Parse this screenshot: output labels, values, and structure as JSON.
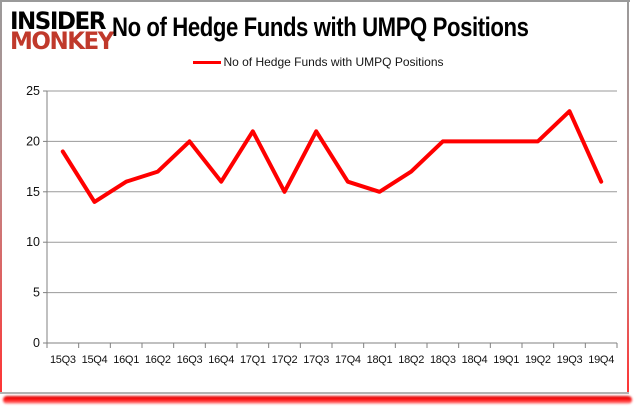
{
  "logo": {
    "line1": "INSIDER",
    "line2": "MONKEY",
    "line1_color": "#000000",
    "line2_color": "#c0392b"
  },
  "header": {
    "title": "No of Hedge Funds with UMPQ Positions"
  },
  "legend": {
    "label": "No of Hedge Funds with UMPQ Positions",
    "color": "#ff0000"
  },
  "chart_data": {
    "type": "line",
    "title": "No of Hedge Funds with UMPQ Positions",
    "categories": [
      "15Q3",
      "15Q4",
      "16Q1",
      "16Q2",
      "16Q3",
      "16Q4",
      "17Q1",
      "17Q2",
      "17Q3",
      "17Q4",
      "18Q1",
      "18Q2",
      "18Q3",
      "18Q4",
      "19Q1",
      "19Q2",
      "19Q3",
      "19Q4"
    ],
    "series": [
      {
        "name": "No of Hedge Funds with UMPQ Positions",
        "color": "#ff0000",
        "values": [
          19,
          14,
          16,
          17,
          20,
          16,
          21,
          15,
          21,
          16,
          15,
          17,
          20,
          20,
          20,
          20,
          23,
          16
        ]
      }
    ],
    "xlabel": "",
    "ylabel": "",
    "ylim": [
      0,
      25
    ],
    "yticks": [
      0,
      5,
      10,
      15,
      20,
      25
    ],
    "grid": true,
    "legend_position": "top"
  },
  "colors": {
    "series_line": "#ff0000",
    "grid_line": "#9a9a9a",
    "axis_line": "#808080",
    "tick_text": "#111111",
    "logo_red": "#c0392b",
    "border_gray": "#9a9a9a",
    "glow_red": "#ff0000"
  }
}
